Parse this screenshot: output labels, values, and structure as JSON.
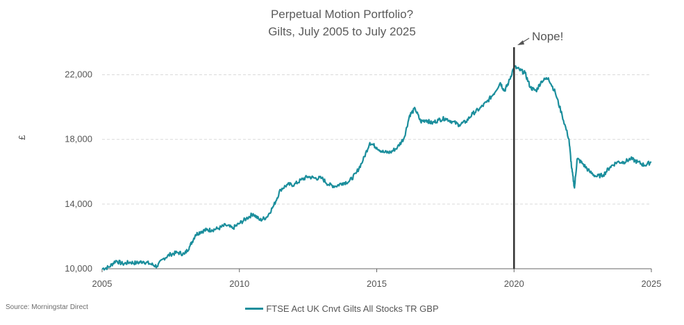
{
  "title_line1": "Perpetual Motion Portfolio?",
  "title_line2": "Gilts, July 2005 to July 2025",
  "source": "Source: Morningstar Direct",
  "chart_data": {
    "type": "line",
    "ylabel": "£",
    "xlabel": "",
    "xlim": [
      2005,
      2025
    ],
    "ylim": [
      10000,
      24000
    ],
    "yticks": [
      10000,
      14000,
      18000,
      22000
    ],
    "ytick_labels": [
      "10,000",
      "14,000",
      "18,000",
      "22,000"
    ],
    "xticks": [
      2005,
      2010,
      2015,
      2020,
      2025
    ],
    "xtick_labels": [
      "2005",
      "2010",
      "2015",
      "2020",
      "2025"
    ],
    "grid": "horizontal dashed",
    "legend_position": "bottom",
    "colors": {
      "series": "#1b8e9c",
      "marker": "#333333",
      "grid": "#d9d9d9"
    },
    "annotation": {
      "text": "Nope!",
      "x": 2020.0
    },
    "series": [
      {
        "name": "FTSE Act UK Cnvt Gilts All Stocks TR GBP",
        "x": [
          2005.0,
          2005.25,
          2005.5,
          2005.75,
          2006.0,
          2006.25,
          2006.5,
          2006.75,
          2007.0,
          2007.25,
          2007.5,
          2007.75,
          2008.0,
          2008.2,
          2008.4,
          2008.6,
          2008.8,
          2009.0,
          2009.25,
          2009.5,
          2009.75,
          2010.0,
          2010.25,
          2010.5,
          2010.75,
          2011.0,
          2011.25,
          2011.5,
          2011.75,
          2012.0,
          2012.25,
          2012.5,
          2012.75,
          2013.0,
          2013.25,
          2013.5,
          2013.75,
          2014.0,
          2014.25,
          2014.5,
          2014.75,
          2015.0,
          2015.25,
          2015.5,
          2015.75,
          2016.0,
          2016.2,
          2016.4,
          2016.6,
          2016.8,
          2017.0,
          2017.25,
          2017.5,
          2017.75,
          2018.0,
          2018.25,
          2018.5,
          2018.75,
          2019.0,
          2019.25,
          2019.5,
          2019.65,
          2019.8,
          2020.0,
          2020.2,
          2020.4,
          2020.6,
          2020.8,
          2021.0,
          2021.25,
          2021.5,
          2021.75,
          2022.0,
          2022.1,
          2022.2,
          2022.3,
          2022.5,
          2022.75,
          2023.0,
          2023.25,
          2023.5,
          2023.75,
          2024.0,
          2024.25,
          2024.5,
          2024.75,
          2025.0
        ],
        "values": [
          10000,
          10100,
          10500,
          10300,
          10400,
          10350,
          10450,
          10300,
          10150,
          10650,
          10900,
          11000,
          10900,
          11400,
          12100,
          12300,
          12400,
          12400,
          12500,
          12700,
          12500,
          12800,
          13100,
          13400,
          13000,
          13200,
          13900,
          14900,
          15200,
          15200,
          15500,
          15700,
          15600,
          15600,
          15200,
          15100,
          15300,
          15400,
          15900,
          16700,
          17800,
          17500,
          17200,
          17200,
          17500,
          18100,
          19500,
          19900,
          19100,
          19200,
          19000,
          19200,
          19300,
          19100,
          18900,
          19100,
          19600,
          19900,
          20300,
          20800,
          21500,
          21000,
          21500,
          22500,
          22300,
          22100,
          21200,
          21000,
          21600,
          21800,
          20900,
          19500,
          18000,
          16200,
          15000,
          16800,
          16500,
          16000,
          15700,
          15800,
          16300,
          16600,
          16600,
          16800,
          16600,
          16400,
          16600
        ]
      }
    ]
  }
}
